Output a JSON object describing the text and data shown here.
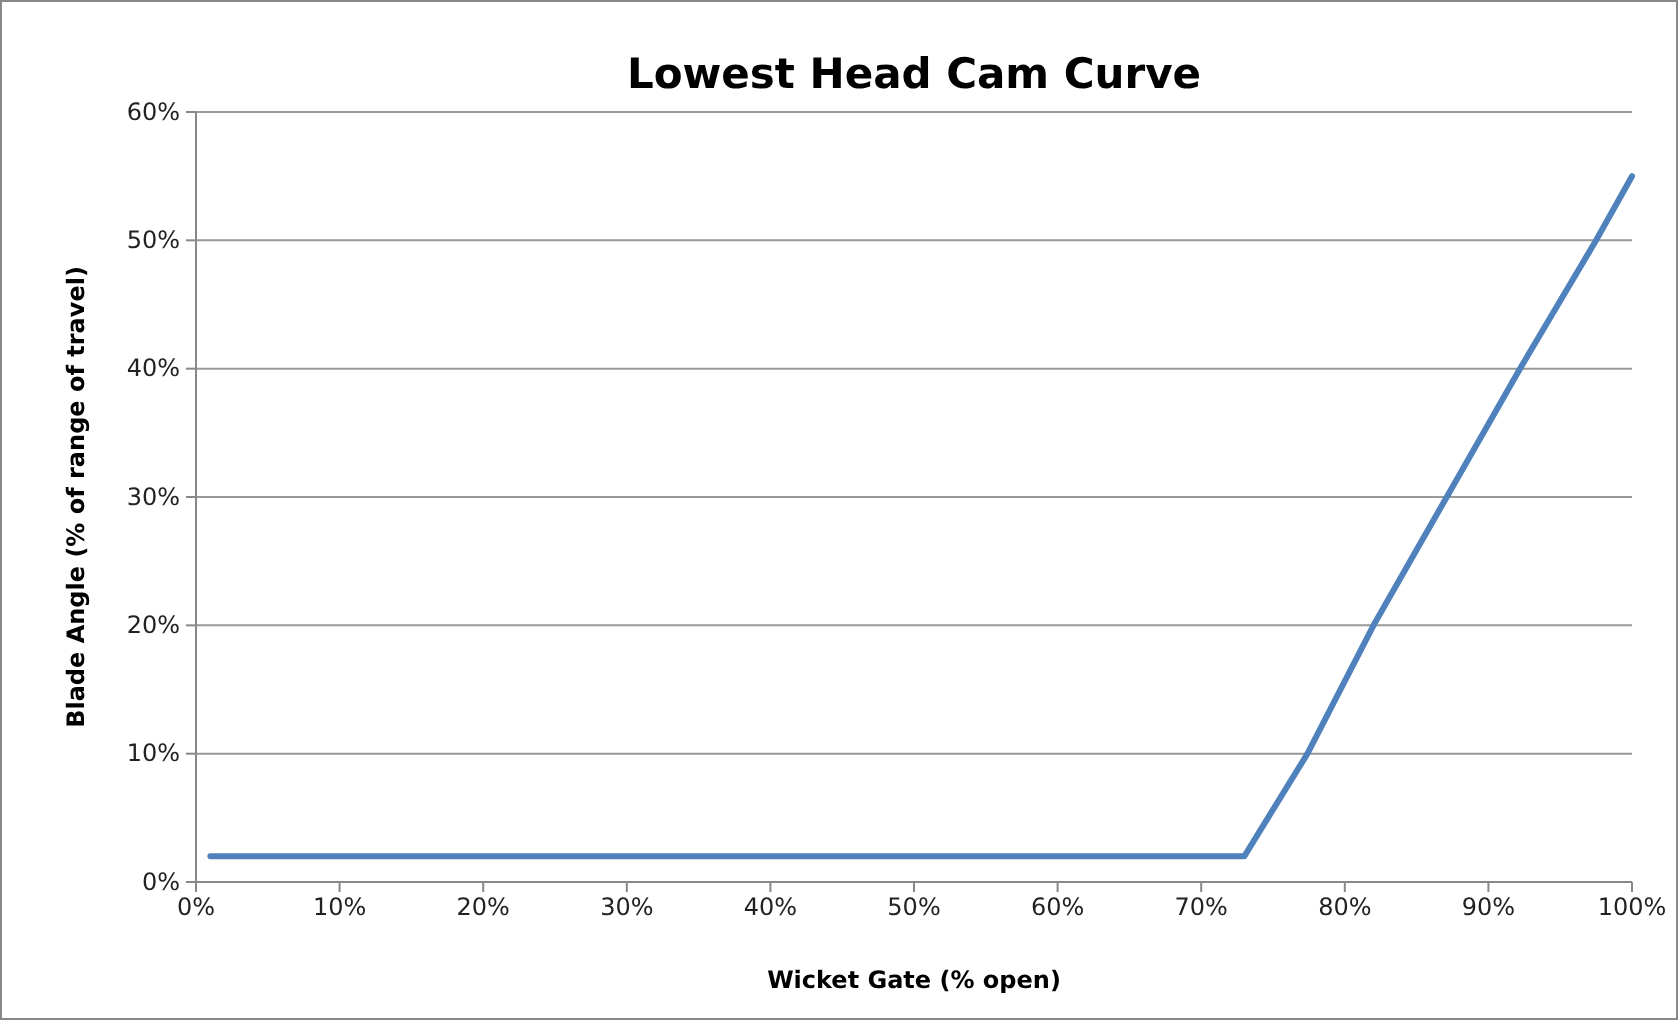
{
  "chart_data": {
    "type": "line",
    "title": "Lowest Head Cam Curve",
    "xlabel": "Wicket Gate (% open)",
    "ylabel": "Blade Angle (% of range of travel)",
    "x": [
      1,
      73,
      77.4,
      82,
      87.1,
      92.2,
      97.5,
      100
    ],
    "series": [
      {
        "color": "#4f81bd",
        "values": [
          2,
          2,
          10,
          20,
          30,
          40,
          50,
          55
        ]
      }
    ],
    "xlim": [
      0,
      100
    ],
    "ylim": [
      0,
      60
    ],
    "xticks": [
      {
        "value": 0,
        "label": "0%"
      },
      {
        "value": 10,
        "label": "10%"
      },
      {
        "value": 20,
        "label": "20%"
      },
      {
        "value": 30,
        "label": "30%"
      },
      {
        "value": 40,
        "label": "40%"
      },
      {
        "value": 50,
        "label": "50%"
      },
      {
        "value": 60,
        "label": "60%"
      },
      {
        "value": 70,
        "label": "70%"
      },
      {
        "value": 80,
        "label": "80%"
      },
      {
        "value": 90,
        "label": "90%"
      },
      {
        "value": 100,
        "label": "100%"
      }
    ],
    "yticks": [
      {
        "value": 0,
        "label": "0%"
      },
      {
        "value": 10,
        "label": "10%"
      },
      {
        "value": 20,
        "label": "20%"
      },
      {
        "value": 30,
        "label": "30%"
      },
      {
        "value": 40,
        "label": "40%"
      },
      {
        "value": 50,
        "label": "50%"
      },
      {
        "value": 60,
        "label": "60%"
      }
    ],
    "grid": "y",
    "marker": "none",
    "line_style": "solid"
  }
}
